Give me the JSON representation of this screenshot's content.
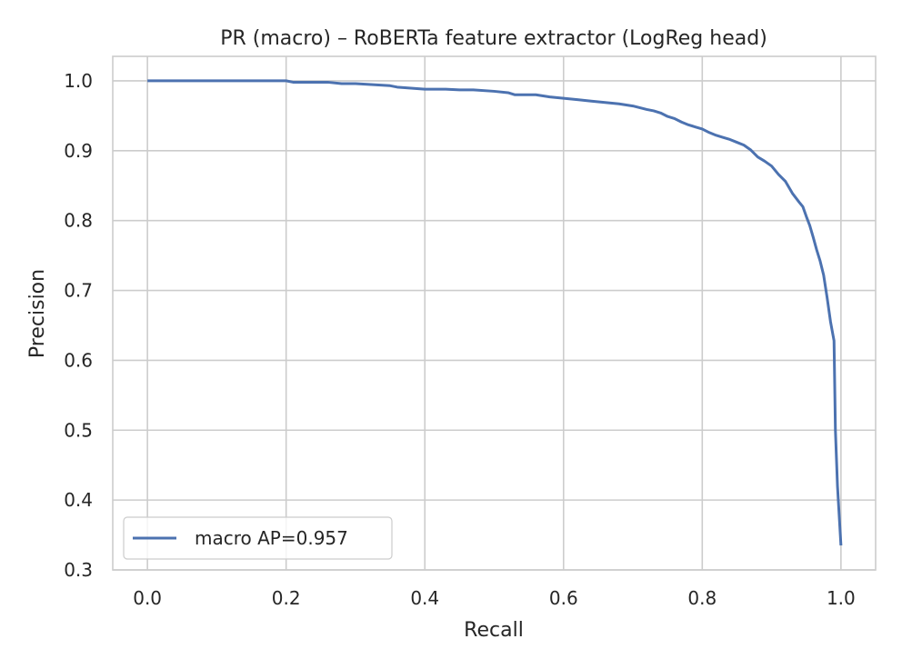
{
  "chart_data": {
    "type": "line",
    "title": "PR (macro) – RoBERTa feature extractor (LogReg head)",
    "xlabel": "Recall",
    "ylabel": "Precision",
    "xlim": [
      -0.05,
      1.05
    ],
    "ylim": [
      0.3,
      1.035
    ],
    "x_ticks": [
      "0.0",
      "0.2",
      "0.4",
      "0.6",
      "0.8",
      "1.0"
    ],
    "y_ticks": [
      "0.3",
      "0.4",
      "0.5",
      "0.6",
      "0.7",
      "0.8",
      "0.9",
      "1.0"
    ],
    "grid": true,
    "legend_position": "lower-left",
    "series": [
      {
        "name": "macro AP=0.957",
        "color": "#4c72b0",
        "points": [
          [
            0.0,
            1.0
          ],
          [
            0.05,
            1.0
          ],
          [
            0.1,
            1.0
          ],
          [
            0.15,
            1.0
          ],
          [
            0.2,
            1.0
          ],
          [
            0.21,
            0.998
          ],
          [
            0.26,
            0.998
          ],
          [
            0.28,
            0.996
          ],
          [
            0.3,
            0.996
          ],
          [
            0.35,
            0.993
          ],
          [
            0.36,
            0.991
          ],
          [
            0.4,
            0.988
          ],
          [
            0.43,
            0.988
          ],
          [
            0.45,
            0.987
          ],
          [
            0.47,
            0.987
          ],
          [
            0.5,
            0.985
          ],
          [
            0.52,
            0.983
          ],
          [
            0.53,
            0.98
          ],
          [
            0.56,
            0.98
          ],
          [
            0.58,
            0.977
          ],
          [
            0.6,
            0.975
          ],
          [
            0.62,
            0.973
          ],
          [
            0.64,
            0.971
          ],
          [
            0.66,
            0.969
          ],
          [
            0.68,
            0.967
          ],
          [
            0.7,
            0.964
          ],
          [
            0.72,
            0.959
          ],
          [
            0.73,
            0.957
          ],
          [
            0.74,
            0.954
          ],
          [
            0.75,
            0.949
          ],
          [
            0.76,
            0.946
          ],
          [
            0.77,
            0.941
          ],
          [
            0.78,
            0.937
          ],
          [
            0.79,
            0.934
          ],
          [
            0.8,
            0.931
          ],
          [
            0.81,
            0.926
          ],
          [
            0.82,
            0.922
          ],
          [
            0.83,
            0.919
          ],
          [
            0.84,
            0.916
          ],
          [
            0.85,
            0.912
          ],
          [
            0.86,
            0.908
          ],
          [
            0.87,
            0.901
          ],
          [
            0.88,
            0.891
          ],
          [
            0.89,
            0.885
          ],
          [
            0.9,
            0.878
          ],
          [
            0.91,
            0.866
          ],
          [
            0.92,
            0.856
          ],
          [
            0.93,
            0.839
          ],
          [
            0.94,
            0.826
          ],
          [
            0.945,
            0.82
          ],
          [
            0.95,
            0.806
          ],
          [
            0.955,
            0.793
          ],
          [
            0.96,
            0.776
          ],
          [
            0.965,
            0.758
          ],
          [
            0.97,
            0.742
          ],
          [
            0.975,
            0.722
          ],
          [
            0.98,
            0.69
          ],
          [
            0.985,
            0.655
          ],
          [
            0.99,
            0.628
          ],
          [
            0.992,
            0.5
          ],
          [
            0.995,
            0.42
          ],
          [
            1.0,
            0.335
          ]
        ]
      }
    ]
  }
}
